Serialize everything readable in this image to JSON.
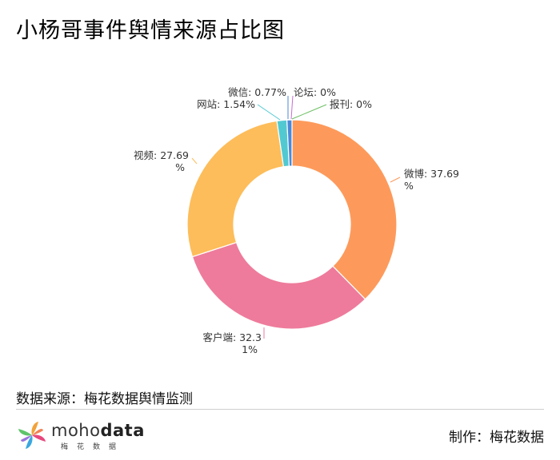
{
  "page": {
    "title": "小杨哥事件舆情来源占比图",
    "source_text": "数据来源：梅花数据舆情监测",
    "credit_text": "制作：梅花数据",
    "logo": {
      "brand_light": "moho",
      "brand_bold": "data",
      "subtitle": "梅花数据"
    }
  },
  "chart_data": {
    "type": "pie",
    "variant": "donut",
    "title": "小杨哥事件舆情来源占比图",
    "slices": [
      {
        "name": "微博",
        "value": 37.69,
        "label_lines": [
          "微博: 37.69",
          "%"
        ],
        "color": "#fd9a5b"
      },
      {
        "name": "客户端",
        "value": 32.31,
        "label_lines": [
          "客户端: 32.3",
          "1%"
        ],
        "color": "#ee7b9b"
      },
      {
        "name": "视频",
        "value": 27.69,
        "label_lines": [
          "视频: 27.69",
          "%"
        ],
        "color": "#fdbd5a"
      },
      {
        "name": "网站",
        "value": 1.54,
        "label_lines": [
          "网站: 1.54%"
        ],
        "color": "#52c9d1"
      },
      {
        "name": "微信",
        "value": 0.77,
        "label_lines": [
          "微信: 0.77%"
        ],
        "color": "#4b89d8"
      },
      {
        "name": "论坛",
        "value": 0.0,
        "label_lines": [
          "论坛: 0%"
        ],
        "color": "#c96bd6"
      },
      {
        "name": "报刊",
        "value": 0.0,
        "label_lines": [
          "报刊: 0%"
        ],
        "color": "#6cbf62"
      }
    ],
    "legend": "none"
  }
}
